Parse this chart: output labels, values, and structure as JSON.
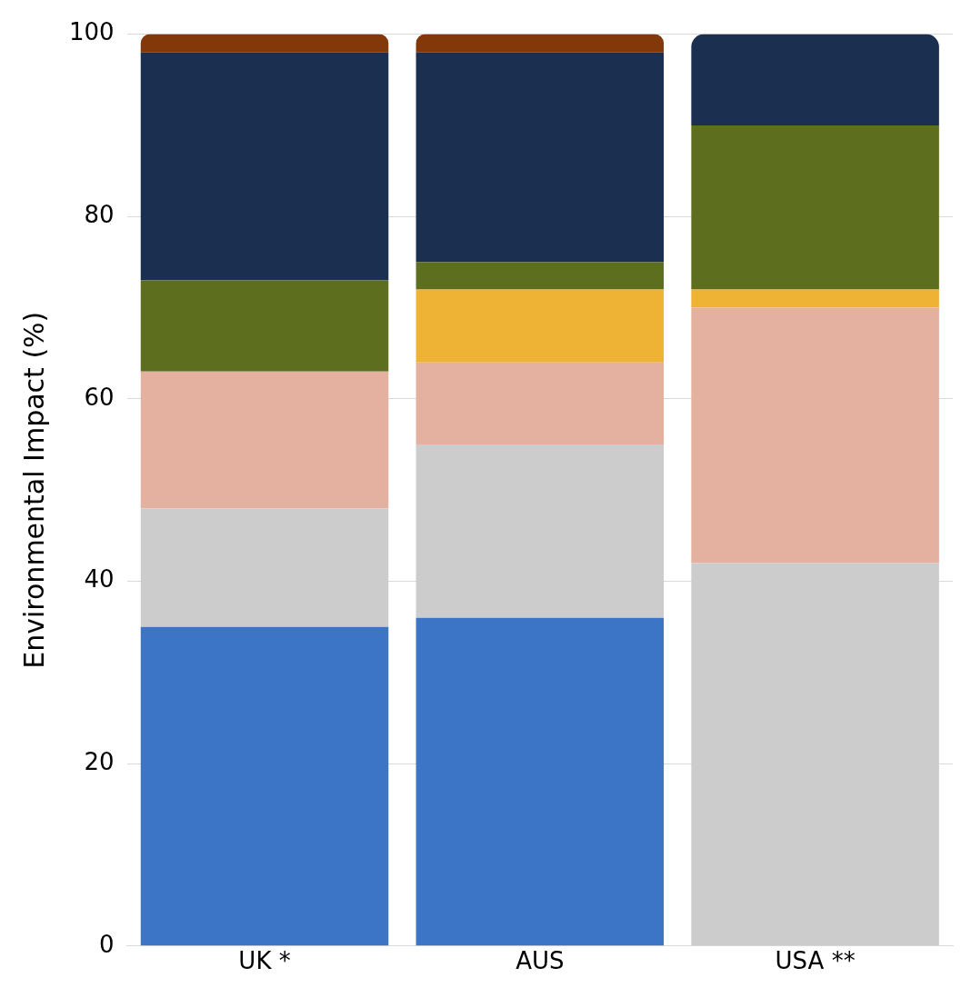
{
  "chart_data": {
    "type": "bar",
    "stacked": true,
    "ylabel": "Environmental Impact (%)",
    "categories": [
      "UK *",
      "AUS",
      "USA **"
    ],
    "series": [
      {
        "color": "#3c74c6",
        "values": [
          35,
          36,
          0
        ]
      },
      {
        "color": "#cccccc",
        "values": [
          13,
          19,
          42
        ]
      },
      {
        "color": "#e4b0a0",
        "values": [
          15,
          9,
          28
        ]
      },
      {
        "color": "#eeb235",
        "values": [
          0,
          8,
          2
        ]
      },
      {
        "color": "#5e6e1f",
        "values": [
          10,
          3,
          18
        ]
      },
      {
        "color": "#1b2f50",
        "values": [
          25,
          23,
          10
        ]
      },
      {
        "color": "#823808",
        "values": [
          2,
          2,
          0
        ]
      }
    ],
    "ylim": [
      0,
      100
    ],
    "yticks": [
      0,
      20,
      40,
      60,
      80,
      100
    ],
    "grid": "y",
    "legend": false
  }
}
